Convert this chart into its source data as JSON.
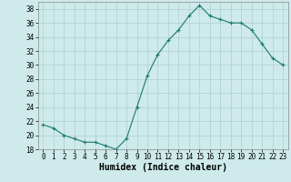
{
  "x": [
    0,
    1,
    2,
    3,
    4,
    5,
    6,
    7,
    8,
    9,
    10,
    11,
    12,
    13,
    14,
    15,
    16,
    17,
    18,
    19,
    20,
    21,
    22,
    23
  ],
  "y": [
    21.5,
    21.0,
    20.0,
    19.5,
    19.0,
    19.0,
    18.5,
    18.0,
    19.5,
    24.0,
    28.5,
    31.5,
    33.5,
    35.0,
    37.0,
    38.5,
    37.0,
    36.5,
    36.0,
    36.0,
    35.0,
    33.0,
    31.0,
    30.0
  ],
  "line_color": "#1a7a6e",
  "marker": "+",
  "marker_size": 3,
  "marker_lw": 0.8,
  "line_width": 0.8,
  "bg_color": "#ceeaea",
  "grid_color": "#aed0d0",
  "ylim": [
    18,
    39
  ],
  "xlim": [
    -0.5,
    23.5
  ],
  "yticks": [
    18,
    20,
    22,
    24,
    26,
    28,
    30,
    32,
    34,
    36,
    38
  ],
  "xticks": [
    0,
    1,
    2,
    3,
    4,
    5,
    6,
    7,
    8,
    9,
    10,
    11,
    12,
    13,
    14,
    15,
    16,
    17,
    18,
    19,
    20,
    21,
    22,
    23
  ],
  "xlabel": "Humidex (Indice chaleur)",
  "xlabel_fontsize": 7,
  "tick_fontsize": 5.5
}
